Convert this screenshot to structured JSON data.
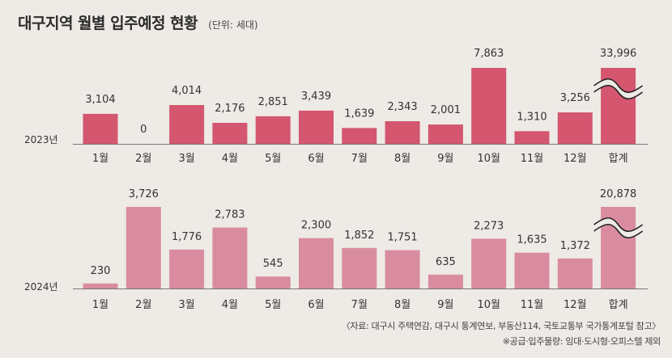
{
  "title": "대구지역 월별 입주예정 현황",
  "unit": "(단위: 세대)",
  "source": "〈자료: 대구시 주택연감, 대구시 통계연보, 부동산114, 국토교통부 국가통계포털 참고〉",
  "note": "※공급·입주물량: 임대·도시형·오피스텔 제외",
  "colors": {
    "y2023": "#d4566f",
    "y2024": "#d98ca0",
    "background": "#eeeae6"
  },
  "chart_data": [
    {
      "type": "bar",
      "series_label": "2023년",
      "categories": [
        "1월",
        "2월",
        "3월",
        "4월",
        "5월",
        "6월",
        "7월",
        "8월",
        "9월",
        "10월",
        "11월",
        "12월",
        "합계"
      ],
      "values": [
        3104,
        0,
        4014,
        2176,
        2851,
        3439,
        1639,
        2343,
        2001,
        7863,
        1310,
        3256,
        33996
      ],
      "value_labels": [
        "3,104",
        "0",
        "4,014",
        "2,176",
        "2,851",
        "3,439",
        "1,639",
        "2,343",
        "2,001",
        "7,863",
        "1,310",
        "3,256",
        "33,996"
      ],
      "scale_max": 7863,
      "total_axis_break": true
    },
    {
      "type": "bar",
      "series_label": "2024년",
      "categories": [
        "1월",
        "2월",
        "3월",
        "4월",
        "5월",
        "6월",
        "7월",
        "8월",
        "9월",
        "10월",
        "11월",
        "12월",
        "합계"
      ],
      "values": [
        230,
        3726,
        1776,
        2783,
        545,
        2300,
        1852,
        1751,
        635,
        2273,
        1635,
        1372,
        20878
      ],
      "value_labels": [
        "230",
        "3,726",
        "1,776",
        "2,783",
        "545",
        "2,300",
        "1,852",
        "1,751",
        "635",
        "2,273",
        "1,635",
        "1,372",
        "20,878"
      ],
      "scale_max": 3726,
      "total_axis_break": true
    }
  ]
}
